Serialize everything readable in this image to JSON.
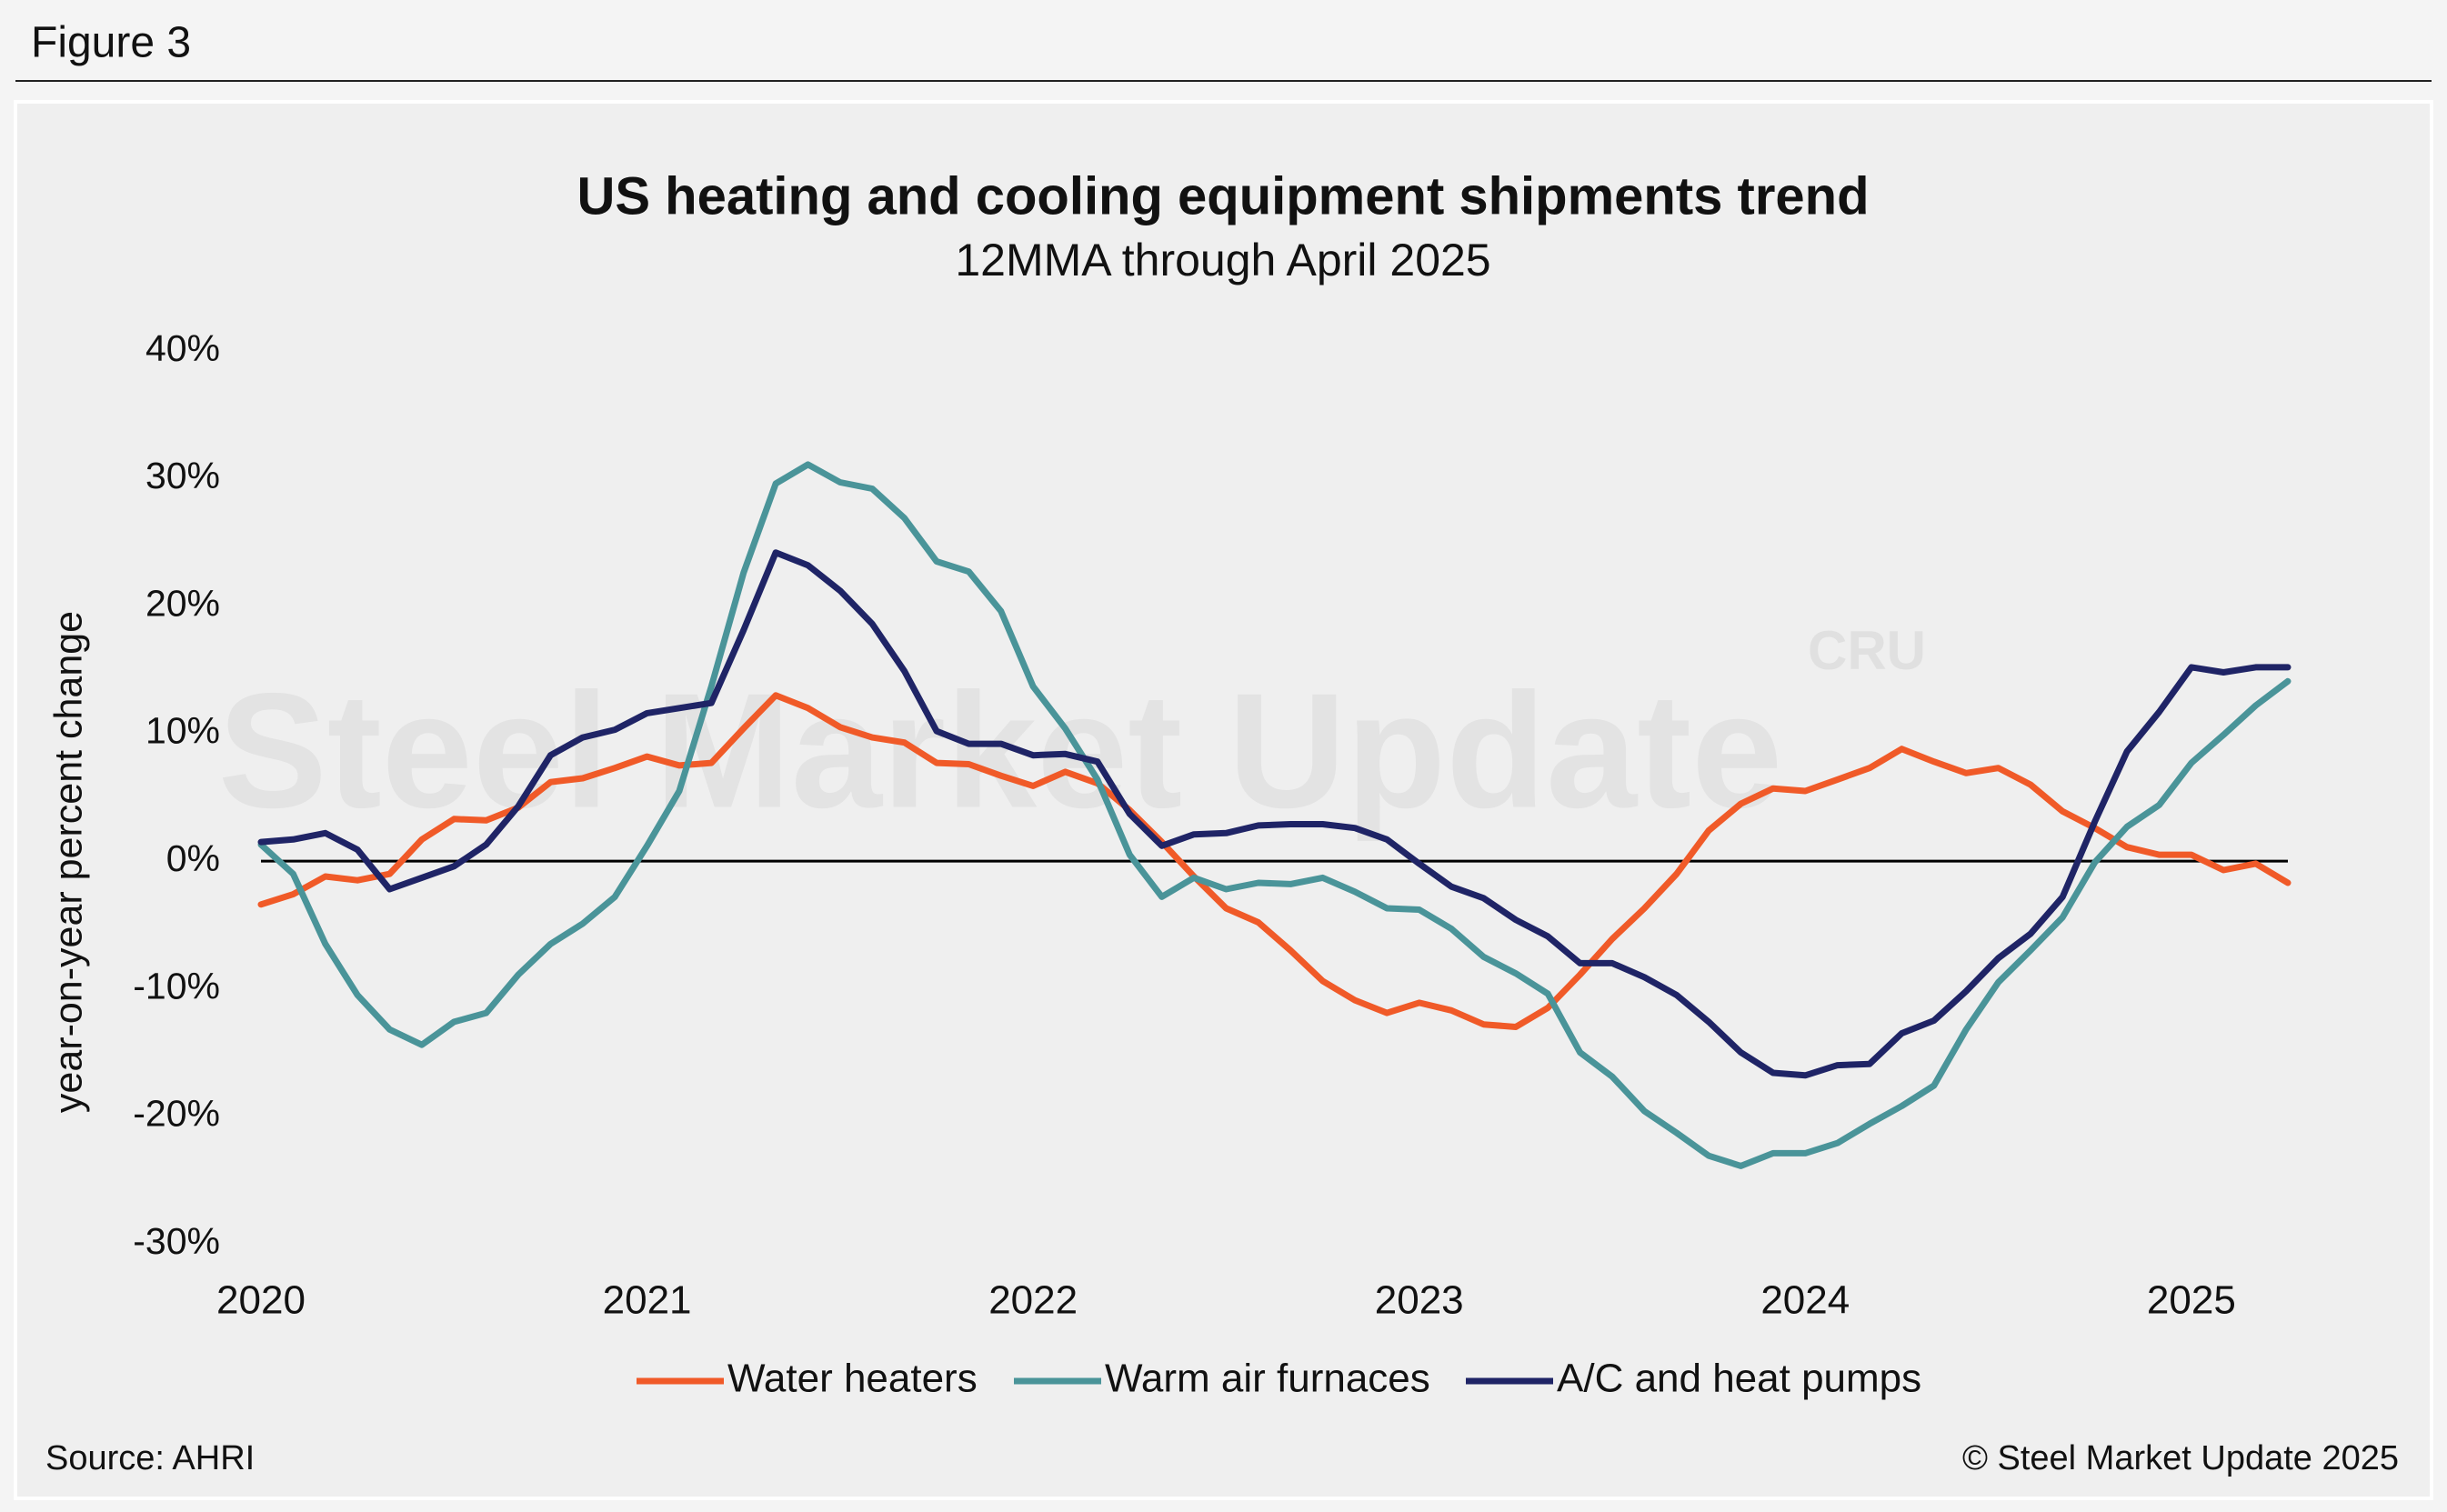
{
  "figure_label": "Figure 3",
  "chart_data": {
    "type": "line",
    "title": "US heating and cooling equipment shipments trend",
    "subtitle": "12MMA through April 2025",
    "y_label": "year-on-year percent change",
    "source": "Source: AHRI",
    "copyright": "© Steel Market Update 2025",
    "watermark": "Steel Market Update",
    "watermark_logo": "CRU",
    "categories": [
      "2020",
      null,
      null,
      null,
      null,
      null,
      null,
      null,
      null,
      null,
      null,
      null,
      "2021",
      null,
      null,
      null,
      null,
      null,
      null,
      null,
      null,
      null,
      null,
      null,
      "2022",
      null,
      null,
      null,
      null,
      null,
      null,
      null,
      null,
      null,
      null,
      null,
      "2023",
      null,
      null,
      null,
      null,
      null,
      null,
      null,
      null,
      null,
      null,
      null,
      "2024",
      null,
      null,
      null,
      null,
      null,
      null,
      null,
      null,
      null,
      null,
      null,
      "2025",
      null,
      null,
      null
    ],
    "ylim": [
      -30,
      40
    ],
    "yticks": [
      {
        "value": -30,
        "label": "-30%"
      },
      {
        "value": -20,
        "label": "-20%"
      },
      {
        "value": -10,
        "label": "-10%"
      },
      {
        "value": 0,
        "label": "0%"
      },
      {
        "value": 10,
        "label": "10%"
      },
      {
        "value": 20,
        "label": "20%"
      },
      {
        "value": 30,
        "label": "30%"
      },
      {
        "value": 40,
        "label": "40%"
      }
    ],
    "legend": "bottom",
    "series": [
      {
        "name": "Water heaters",
        "color": "#f05a28",
        "values": [
          -3.4,
          -2.6,
          -1.2,
          -1.5,
          -1.0,
          1.7,
          3.3,
          3.2,
          4.2,
          6.2,
          6.5,
          7.3,
          8.2,
          7.5,
          7.7,
          10.4,
          13.0,
          12.0,
          10.5,
          9.7,
          9.3,
          7.7,
          7.6,
          6.7,
          5.9,
          7.0,
          6.1,
          4.0,
          1.5,
          -1.2,
          -3.7,
          -4.8,
          -7.0,
          -9.4,
          -10.9,
          -11.9,
          -11.1,
          -11.7,
          -12.8,
          -13.0,
          -11.5,
          -8.9,
          -6.1,
          -3.7,
          -1.0,
          2.4,
          4.5,
          5.7,
          5.5,
          6.4,
          7.3,
          8.8,
          7.8,
          6.9,
          7.3,
          6.0,
          3.9,
          2.6,
          1.1,
          0.5,
          0.5,
          -0.7,
          -0.2,
          -1.7
        ]
      },
      {
        "name": "Warm air furnaces",
        "color": "#4a9499",
        "values": [
          1.3,
          -1.0,
          -6.5,
          -10.5,
          -13.2,
          -14.4,
          -12.6,
          -11.9,
          -8.9,
          -6.5,
          -4.9,
          -2.8,
          1.2,
          5.5,
          13.7,
          22.6,
          29.6,
          31.1,
          29.7,
          29.2,
          26.9,
          23.5,
          22.7,
          19.6,
          13.7,
          10.4,
          6.4,
          0.5,
          -2.8,
          -1.3,
          -2.2,
          -1.7,
          -1.8,
          -1.3,
          -2.4,
          -3.7,
          -3.8,
          -5.3,
          -7.5,
          -8.8,
          -10.4,
          -15.0,
          -16.9,
          -19.6,
          -21.3,
          -23.1,
          -23.9,
          -22.9,
          -22.9,
          -22.1,
          -20.6,
          -19.2,
          -17.6,
          -13.2,
          -9.5,
          -7.0,
          -4.4,
          -0.1,
          2.7,
          4.4,
          7.7,
          9.9,
          12.2,
          14.1
        ]
      },
      {
        "name": "A/C and heat pumps",
        "color": "#1f2466",
        "values": [
          1.5,
          1.7,
          2.2,
          0.9,
          -2.2,
          -1.3,
          -0.4,
          1.3,
          4.3,
          8.3,
          9.7,
          10.3,
          11.6,
          12.0,
          12.4,
          18.1,
          24.2,
          23.2,
          21.2,
          18.6,
          14.9,
          10.2,
          9.2,
          9.2,
          8.3,
          8.4,
          7.8,
          3.7,
          1.2,
          2.1,
          2.2,
          2.8,
          2.9,
          2.9,
          2.6,
          1.7,
          -0.2,
          -2.0,
          -2.9,
          -4.6,
          -5.9,
          -8.0,
          -8.0,
          -9.1,
          -10.5,
          -12.6,
          -15.0,
          -16.6,
          -16.8,
          -16.0,
          -15.9,
          -13.5,
          -12.5,
          -10.2,
          -7.6,
          -5.7,
          -2.8,
          3.1,
          8.6,
          11.7,
          15.2,
          14.8,
          15.2,
          15.2
        ]
      }
    ]
  }
}
